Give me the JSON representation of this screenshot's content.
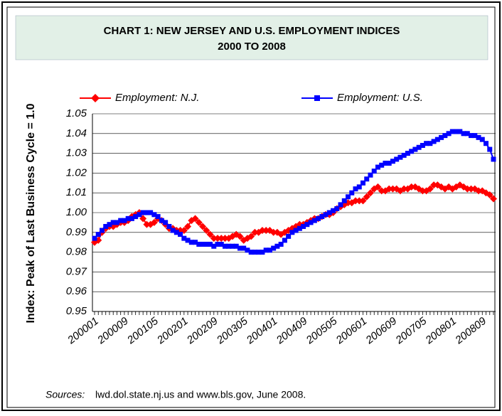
{
  "chart_data": {
    "type": "line",
    "title_lines": [
      "CHART 1: NEW JERSEY AND U.S. EMPLOYMENT INDICES",
      "2000 TO 2008"
    ],
    "y_label": "Index: Peak of Last Business Cycle = 1.0",
    "source": {
      "label": "Sources:",
      "text": "lwd.dol.state.nj.us and www.bls.gov, June 2008."
    },
    "categories": [
      "200001",
      null,
      null,
      null,
      null,
      null,
      null,
      null,
      "200009",
      null,
      null,
      null,
      null,
      null,
      null,
      null,
      "200105",
      null,
      null,
      null,
      null,
      null,
      null,
      null,
      "200201",
      null,
      null,
      null,
      null,
      null,
      null,
      null,
      "200209",
      null,
      null,
      null,
      null,
      null,
      null,
      null,
      "200305",
      null,
      null,
      null,
      null,
      null,
      null,
      null,
      "200401",
      null,
      null,
      null,
      null,
      null,
      null,
      null,
      "200409",
      null,
      null,
      null,
      null,
      null,
      null,
      null,
      "200505",
      null,
      null,
      null,
      null,
      null,
      null,
      null,
      "200601",
      null,
      null,
      null,
      null,
      null,
      null,
      null,
      "200609",
      null,
      null,
      null,
      null,
      null,
      null,
      null,
      "200705",
      null,
      null,
      null,
      null,
      null,
      null,
      null,
      "200801",
      null,
      null,
      null,
      null,
      null,
      null,
      null,
      "200809",
      null,
      null,
      null
    ],
    "series": [
      {
        "name": "Employment: N.J.",
        "color": "#ff0000",
        "marker": "diamond",
        "values": [
          0.985,
          0.986,
          0.99,
          0.992,
          0.993,
          0.993,
          0.994,
          0.995,
          0.995,
          0.996,
          0.998,
          0.999,
          1.0,
          0.997,
          0.994,
          0.994,
          0.995,
          0.997,
          0.996,
          0.994,
          0.992,
          0.992,
          0.991,
          0.991,
          0.991,
          0.993,
          0.996,
          0.997,
          0.995,
          0.993,
          0.991,
          0.989,
          0.987,
          0.987,
          0.987,
          0.987,
          0.987,
          0.988,
          0.989,
          0.988,
          0.986,
          0.987,
          0.988,
          0.99,
          0.99,
          0.991,
          0.991,
          0.991,
          0.99,
          0.99,
          0.989,
          0.99,
          0.991,
          0.992,
          0.993,
          0.994,
          0.994,
          0.995,
          0.996,
          0.997,
          0.997,
          0.998,
          0.999,
          0.999,
          1.0,
          1.002,
          1.003,
          1.004,
          1.005,
          1.005,
          1.006,
          1.006,
          1.006,
          1.008,
          1.01,
          1.012,
          1.013,
          1.011,
          1.011,
          1.012,
          1.012,
          1.012,
          1.011,
          1.012,
          1.012,
          1.013,
          1.013,
          1.012,
          1.011,
          1.011,
          1.012,
          1.014,
          1.014,
          1.013,
          1.012,
          1.013,
          1.012,
          1.013,
          1.014,
          1.013,
          1.012,
          1.012,
          1.012,
          1.011,
          1.011,
          1.01,
          1.009,
          1.007
        ]
      },
      {
        "name": "Employment: U.S.",
        "color": "#0000ff",
        "marker": "square",
        "values": [
          0.987,
          0.989,
          0.991,
          0.993,
          0.994,
          0.995,
          0.995,
          0.996,
          0.996,
          0.997,
          0.997,
          0.998,
          0.999,
          1.0,
          1.0,
          1.0,
          0.999,
          0.998,
          0.996,
          0.995,
          0.993,
          0.991,
          0.99,
          0.989,
          0.987,
          0.986,
          0.985,
          0.985,
          0.984,
          0.984,
          0.984,
          0.984,
          0.983,
          0.984,
          0.984,
          0.983,
          0.983,
          0.983,
          0.983,
          0.982,
          0.982,
          0.981,
          0.98,
          0.98,
          0.98,
          0.98,
          0.981,
          0.981,
          0.982,
          0.983,
          0.984,
          0.986,
          0.988,
          0.99,
          0.991,
          0.992,
          0.993,
          0.994,
          0.995,
          0.996,
          0.997,
          0.998,
          0.999,
          1.0,
          1.001,
          1.002,
          1.004,
          1.006,
          1.008,
          1.01,
          1.012,
          1.013,
          1.015,
          1.017,
          1.019,
          1.021,
          1.023,
          1.024,
          1.025,
          1.025,
          1.026,
          1.027,
          1.028,
          1.029,
          1.03,
          1.031,
          1.032,
          1.033,
          1.034,
          1.035,
          1.035,
          1.036,
          1.037,
          1.038,
          1.039,
          1.04,
          1.041,
          1.041,
          1.041,
          1.04,
          1.04,
          1.039,
          1.039,
          1.038,
          1.037,
          1.035,
          1.032,
          1.027
        ]
      }
    ],
    "ylim": [
      0.95,
      1.05
    ],
    "yticks": [
      0.95,
      0.96,
      0.97,
      0.98,
      0.99,
      {
        "value": 1,
        "label": "1.00"
      },
      1.01,
      1.02,
      1.03,
      1.04,
      1.05
    ],
    "grid": true
  }
}
